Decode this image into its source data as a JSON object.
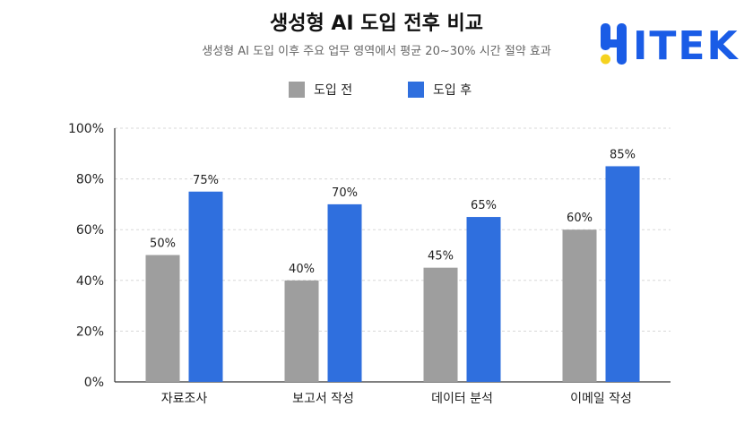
{
  "header": {
    "title": "생성형 AI 도입 전후 비교",
    "subtitle": "생성형 AI 도입 이후 주요 업무 영역에서 평균 20~30% 시간 절약 효과",
    "logo_text": "HITEK"
  },
  "colors": {
    "before": "#9e9e9e",
    "after": "#2f6fde",
    "logo_blue": "#1a5ce6",
    "logo_yellow": "#f5d21f",
    "grid": "#d8d8d8"
  },
  "chart_data": {
    "type": "bar",
    "categories": [
      "자료조사",
      "보고서 작성",
      "데이터 분석",
      "이메일 작성"
    ],
    "series": [
      {
        "name": "도입 전",
        "values": [
          50,
          40,
          45,
          60
        ],
        "labels": [
          "50%",
          "40%",
          "45%",
          "60%"
        ]
      },
      {
        "name": "도입 후",
        "values": [
          75,
          70,
          65,
          85
        ],
        "labels": [
          "75%",
          "70%",
          "65%",
          "85%"
        ]
      }
    ],
    "ylim": [
      0,
      100
    ],
    "yticks": [
      "0%",
      "20%",
      "40%",
      "60%",
      "80%",
      "100%"
    ],
    "grid": true,
    "legend_position": "top-center"
  }
}
